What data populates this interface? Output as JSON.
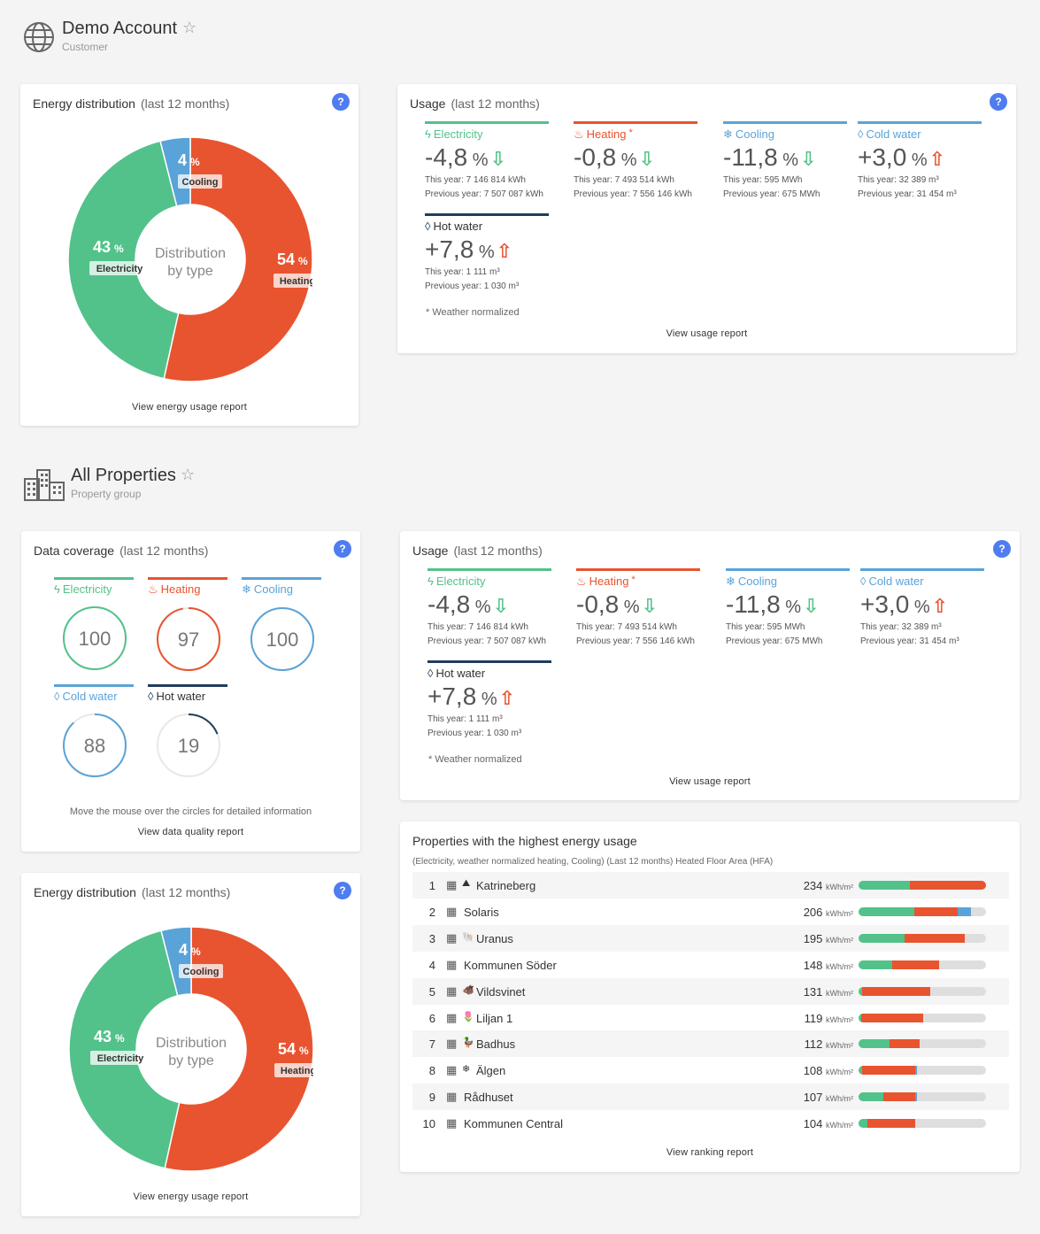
{
  "colors": {
    "electricity": "#52c28a",
    "heating": "#e8542f",
    "cooling": "#5aa3d8",
    "cold_water": "#5aa3d8",
    "hot_water": "#1f3d5a",
    "help": "#4f7cf0",
    "down_arrow": "#52c28a",
    "up_arrow": "#e8542f"
  },
  "account": {
    "title": "Demo Account",
    "subtitle": "Customer",
    "icon": "globe-icon"
  },
  "group": {
    "title": "All Properties",
    "subtitle": "Property group",
    "icon": "buildings-icon"
  },
  "energy_distribution": {
    "title": "Energy distribution",
    "period": "(last 12 months)",
    "center_line1": "Distribution",
    "center_line2": "by type",
    "link": "View energy usage report",
    "slices": [
      {
        "key": "heating",
        "name": "Heating",
        "value": 54,
        "pct_label": "54",
        "unit": "%"
      },
      {
        "key": "electricity",
        "name": "Electricity",
        "value": 43,
        "pct_label": "43",
        "unit": "%"
      },
      {
        "key": "cooling",
        "name": "Cooling",
        "value": 4,
        "pct_label": "4",
        "unit": "%"
      }
    ]
  },
  "usage": {
    "title": "Usage",
    "period": "(last 12 months)",
    "footnote": "* Weather normalized",
    "link": "View usage report",
    "metrics": [
      {
        "key": "electricity",
        "label": "Electricity",
        "icon": "lightning-icon",
        "sign_value": "-4,8",
        "unit": "%",
        "direction": "down",
        "arrow": "⇩",
        "this_year": "This year: 7 146 814 kWh",
        "previous_year": "Previous year: 7 507 087 kWh"
      },
      {
        "key": "heating",
        "label": "Heating",
        "label_suffix": "*",
        "icon": "flame-icon",
        "sign_value": "-0,8",
        "unit": "%",
        "direction": "down",
        "arrow": "⇩",
        "this_year": "This year: 7 493 514 kWh",
        "previous_year": "Previous year: 7 556 146 kWh"
      },
      {
        "key": "cooling",
        "label": "Cooling",
        "icon": "snowflake-icon",
        "sign_value": "-11,8",
        "unit": "%",
        "direction": "down",
        "arrow": "⇩",
        "this_year": "This year: 595 MWh",
        "previous_year": "Previous year: 675 MWh"
      },
      {
        "key": "cold_water",
        "label": "Cold water",
        "icon": "droplet-icon",
        "sign_value": "+3,0",
        "unit": "%",
        "direction": "up",
        "arrow": "⇧",
        "this_year": "This year: 32 389 m³",
        "previous_year": "Previous year: 31 454 m³"
      },
      {
        "key": "hot_water",
        "label": "Hot water",
        "icon": "droplet-icon",
        "sign_value": "+7,8",
        "unit": "%",
        "direction": "up",
        "arrow": "⇧",
        "this_year": "This year: 1 111 m³",
        "previous_year": "Previous year: 1 030 m³"
      }
    ]
  },
  "data_coverage": {
    "title": "Data coverage",
    "period": "(last 12 months)",
    "hint": "Move the mouse over the circles for detailed information",
    "link": "View data quality report",
    "items": [
      {
        "key": "electricity",
        "label": "Electricity",
        "icon": "lightning-icon",
        "value": 100,
        "value_label": "100"
      },
      {
        "key": "heating",
        "label": "Heating",
        "icon": "flame-icon",
        "value": 97,
        "value_label": "97"
      },
      {
        "key": "cooling",
        "label": "Cooling",
        "icon": "snowflake-icon",
        "value": 100,
        "value_label": "100"
      },
      {
        "key": "cold_water",
        "label": "Cold water",
        "icon": "droplet-icon",
        "value": 88,
        "value_label": "88"
      },
      {
        "key": "hot_water",
        "label": "Hot water",
        "icon": "droplet-icon",
        "value": 19,
        "value_label": "19"
      }
    ]
  },
  "ranking": {
    "title": "Properties with the highest energy usage",
    "subtitle": "(Electricity, weather normalized heating, Cooling) (Last 12 months) Heated Floor Area (HFA)",
    "unit": "kWh/m²",
    "link": "View ranking report",
    "max_value": 234,
    "rows": [
      {
        "rank": "1",
        "name": "Katrineberg",
        "emoji": "⛰",
        "value": "234",
        "electricity": 94,
        "heating": 140,
        "cooling": 0
      },
      {
        "rank": "2",
        "name": "Solaris",
        "emoji": "",
        "value": "206",
        "electricity": 102,
        "heating": 80,
        "cooling": 24
      },
      {
        "rank": "3",
        "name": "Uranus",
        "emoji": "🐚",
        "value": "195",
        "electricity": 85,
        "heating": 110,
        "cooling": 0
      },
      {
        "rank": "4",
        "name": "Kommunen Söder",
        "emoji": "",
        "value": "148",
        "electricity": 62,
        "heating": 86,
        "cooling": 0
      },
      {
        "rank": "5",
        "name": "Vildsvinet",
        "emoji": "🐗",
        "value": "131",
        "electricity": 6,
        "heating": 125,
        "cooling": 0
      },
      {
        "rank": "6",
        "name": "Liljan 1",
        "emoji": "🌷",
        "value": "119",
        "electricity": 5,
        "heating": 114,
        "cooling": 0
      },
      {
        "rank": "7",
        "name": "Badhus",
        "emoji": "🦆",
        "value": "112",
        "electricity": 57,
        "heating": 55,
        "cooling": 0
      },
      {
        "rank": "8",
        "name": "Älgen",
        "emoji": "❄",
        "value": "108",
        "electricity": 6,
        "heating": 98,
        "cooling": 4
      },
      {
        "rank": "9",
        "name": "Rådhuset",
        "emoji": "",
        "value": "107",
        "electricity": 46,
        "heating": 58,
        "cooling": 3
      },
      {
        "rank": "10",
        "name": "Kommunen Central",
        "emoji": "",
        "value": "104",
        "electricity": 16,
        "heating": 88,
        "cooling": 0
      }
    ]
  }
}
